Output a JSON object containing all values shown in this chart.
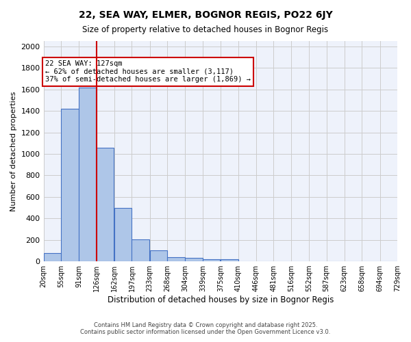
{
  "title1": "22, SEA WAY, ELMER, BOGNOR REGIS, PO22 6JY",
  "title2": "Size of property relative to detached houses in Bognor Regis",
  "xlabel": "Distribution of detached houses by size in Bognor Regis",
  "ylabel": "Number of detached properties",
  "bins": [
    20,
    55,
    91,
    126,
    162,
    197,
    233,
    268,
    304,
    339,
    375,
    410,
    446,
    481,
    516,
    552,
    587,
    623,
    658,
    694,
    729
  ],
  "bin_labels": [
    "20sqm",
    "55sqm",
    "91sqm",
    "126sqm",
    "162sqm",
    "197sqm",
    "233sqm",
    "268sqm",
    "304sqm",
    "339sqm",
    "375sqm",
    "410sqm",
    "446sqm",
    "481sqm",
    "516sqm",
    "552sqm",
    "587sqm",
    "623sqm",
    "658sqm",
    "694sqm",
    "729sqm"
  ],
  "counts": [
    80,
    1420,
    1620,
    1060,
    500,
    205,
    105,
    40,
    30,
    20,
    20,
    0,
    0,
    0,
    0,
    0,
    0,
    0,
    0,
    0
  ],
  "bar_color": "#aec6e8",
  "bar_edge_color": "#4472c4",
  "red_line_x": 127,
  "annotation_text": "22 SEA WAY: 127sqm\n← 62% of detached houses are smaller (3,117)\n37% of semi-detached houses are larger (1,869) →",
  "annotation_box_color": "#ffffff",
  "annotation_box_edge": "#cc0000",
  "ylim": [
    0,
    2050
  ],
  "yticks": [
    0,
    200,
    400,
    600,
    800,
    1000,
    1200,
    1400,
    1600,
    1800,
    2000
  ],
  "grid_color": "#cccccc",
  "bg_color": "#eef2fb",
  "footer1": "Contains HM Land Registry data © Crown copyright and database right 2025.",
  "footer2": "Contains public sector information licensed under the Open Government Licence v3.0."
}
